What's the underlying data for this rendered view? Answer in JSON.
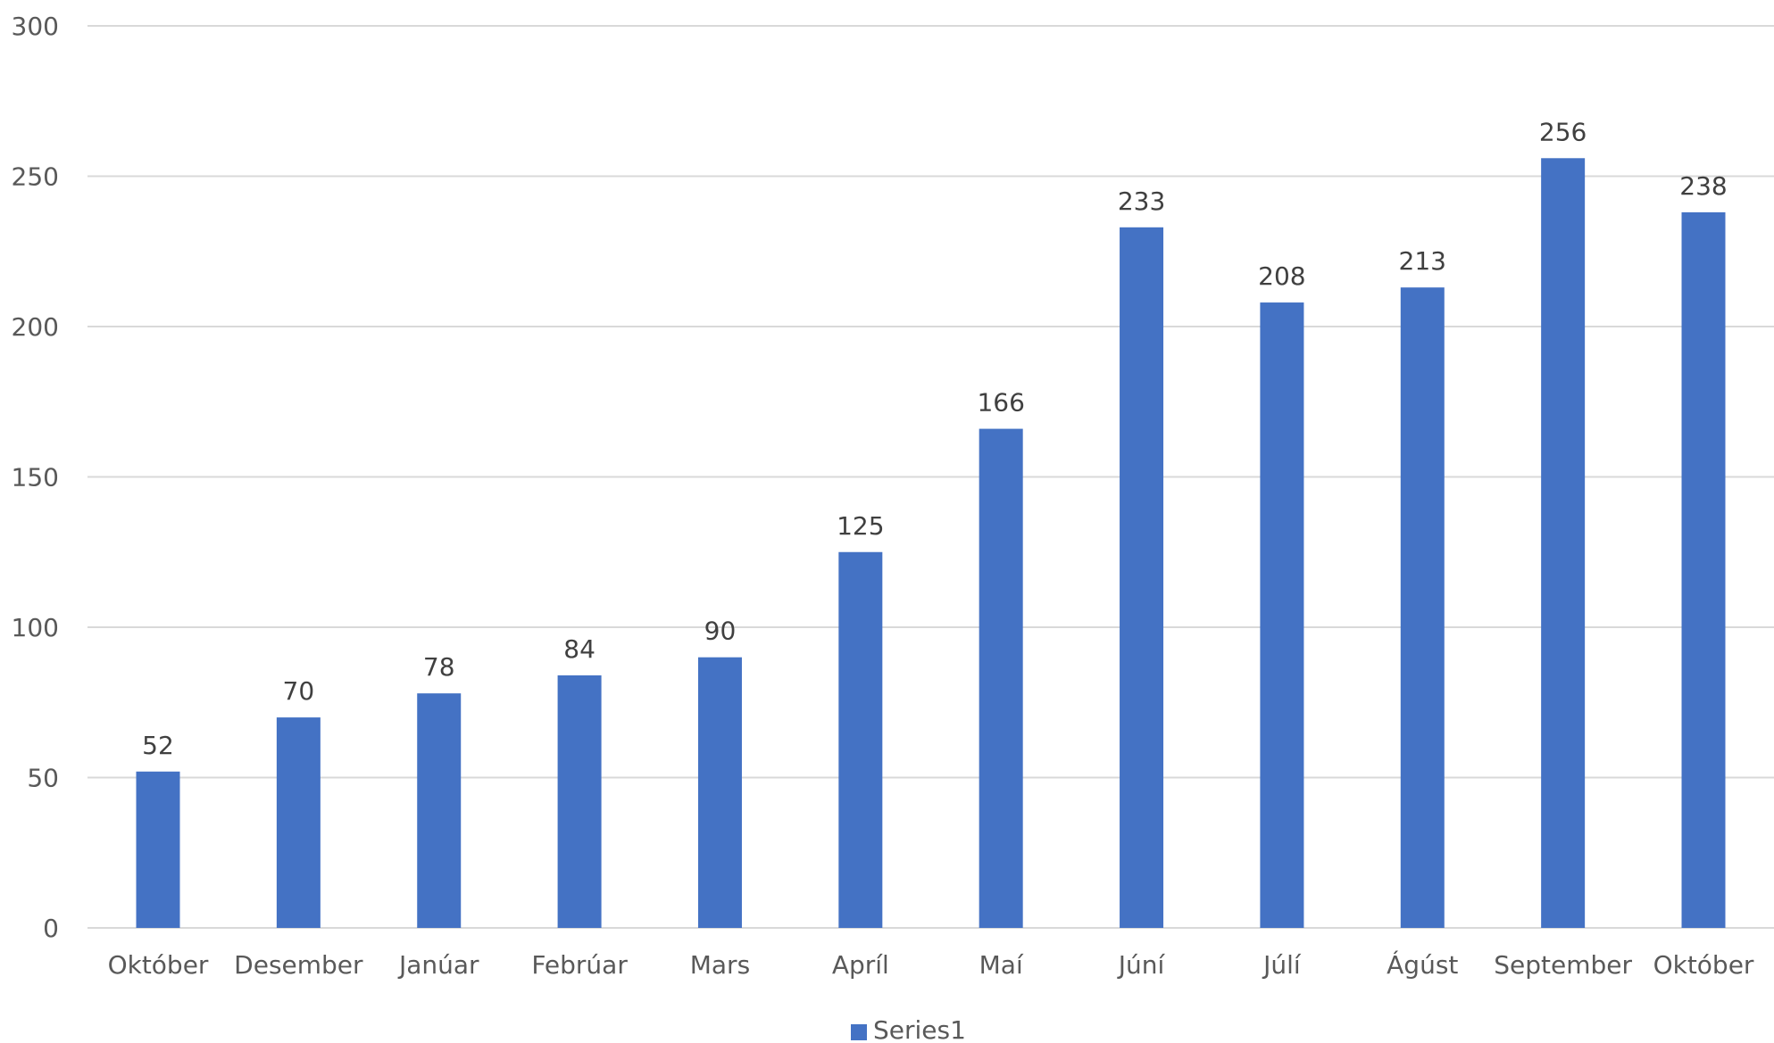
{
  "chart_data": {
    "type": "bar",
    "categories": [
      "Október",
      "Desember",
      "Janúar",
      "Febrúar",
      "Mars",
      "Apríl",
      "Maí",
      "Júní",
      "Júlí",
      "Ágúst",
      "September",
      "Október"
    ],
    "series": [
      {
        "name": "Series1",
        "values": [
          52,
          70,
          78,
          84,
          90,
          125,
          166,
          233,
          208,
          213,
          256,
          238
        ]
      }
    ],
    "y_ticks": [
      0,
      50,
      100,
      150,
      200,
      250,
      300
    ],
    "ylim": [
      0,
      300
    ],
    "grid": true,
    "legend_position": "bottom",
    "data_labels": true,
    "bar_color": "#4472C4",
    "grid_color": "#D9D9D9"
  }
}
